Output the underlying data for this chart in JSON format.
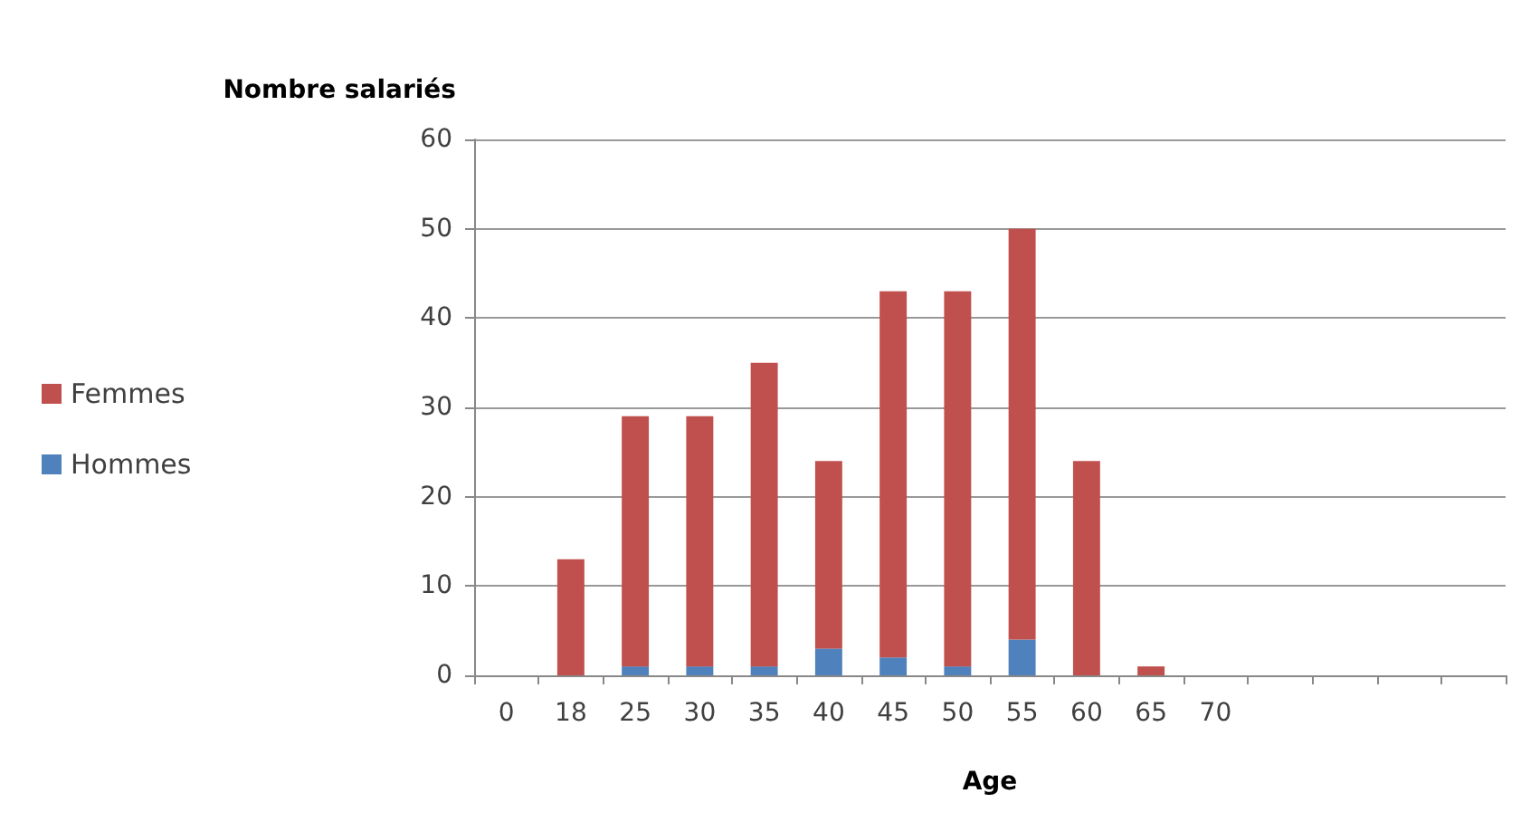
{
  "chart_data": {
    "type": "bar",
    "stacked": true,
    "ylabel": "Nombre salariés",
    "xlabel": "Age",
    "categories": [
      "0",
      "18",
      "25",
      "30",
      "35",
      "40",
      "45",
      "50",
      "55",
      "60",
      "65",
      "70",
      null,
      null,
      null,
      null
    ],
    "series": [
      {
        "name": "Hommes",
        "color": "#4f81bd",
        "values": [
          0,
          0,
          1,
          1,
          1,
          3,
          2,
          1,
          4,
          0,
          0,
          0,
          null,
          null,
          null,
          null
        ]
      },
      {
        "name": "Femmes",
        "color": "#c0504d",
        "values": [
          0,
          13,
          28,
          28,
          34,
          21,
          41,
          42,
          46,
          24,
          1,
          0,
          null,
          null,
          null,
          null
        ]
      }
    ],
    "ylim": [
      0,
      60
    ],
    "yticks": [
      0,
      10,
      20,
      30,
      40,
      50,
      60
    ],
    "grid": "y",
    "legend": "left"
  }
}
